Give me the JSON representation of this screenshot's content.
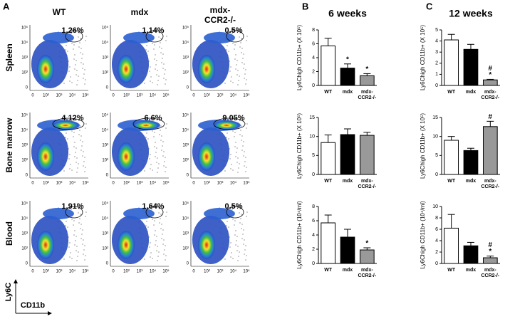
{
  "panel_letters": [
    "A",
    "B",
    "C"
  ],
  "flow": {
    "columns": [
      [
        "WT"
      ],
      [
        "mdx"
      ],
      [
        "mdx-",
        "CCR2-/-"
      ]
    ],
    "rows": [
      {
        "label": "Spleen",
        "percents": [
          "1.26%",
          "1.14%",
          "0.5%"
        ]
      },
      {
        "label": "Bone marrow",
        "percents": [
          "4.12%",
          "6.6%",
          "9.05%"
        ]
      },
      {
        "label": "Blood",
        "percents": [
          "1.91%",
          "1.64%",
          "0.5%"
        ]
      }
    ],
    "yticks": [
      "10⁵",
      "10⁴",
      "10³",
      "10²",
      "0"
    ],
    "xticks": [
      "0",
      "10²",
      "10³",
      "10⁴",
      "10⁵"
    ],
    "ylabel": "Ly6C",
    "xlabel": "CD11b"
  },
  "chart_data": [
    {
      "type": "bar",
      "title": "6 weeks",
      "ylabel": "Ly6Chigh CD11b+ (X 10⁵)",
      "categories": [
        [
          "WT"
        ],
        [
          "mdx"
        ],
        [
          "mdx-",
          "CCR2-/-"
        ]
      ],
      "colors": [
        "#ffffff",
        "#000000",
        "#999999"
      ],
      "values": [
        5.7,
        2.5,
        1.4
      ],
      "errors": [
        1.1,
        0.6,
        0.3
      ],
      "marks": [
        [],
        [
          "*"
        ],
        [
          "*"
        ]
      ],
      "ylim": [
        0,
        8
      ],
      "yticks": [
        0,
        2,
        4,
        6,
        8
      ]
    },
    {
      "type": "bar",
      "ylabel": "Ly6Chigh CD11b+ (X 10⁵)",
      "categories": [
        [
          "WT"
        ],
        [
          "mdx"
        ],
        [
          "mdx-",
          "CCR2-/-"
        ]
      ],
      "colors": [
        "#ffffff",
        "#000000",
        "#999999"
      ],
      "values": [
        8.4,
        10.5,
        10.3
      ],
      "errors": [
        2,
        1.5,
        0.8
      ],
      "marks": [
        [],
        [],
        []
      ],
      "ylim": [
        0,
        15
      ],
      "yticks": [
        0,
        5,
        10,
        15
      ]
    },
    {
      "type": "bar",
      "ylabel": "Ly6Chigh CD11b+ (10⁴/ml)",
      "categories": [
        [
          "WT"
        ],
        [
          "mdx"
        ],
        [
          "mdx-",
          "CCR2-/-"
        ]
      ],
      "colors": [
        "#ffffff",
        "#000000",
        "#999999"
      ],
      "values": [
        5.7,
        3.7,
        1.9
      ],
      "errors": [
        1.1,
        1.1,
        0.3
      ],
      "marks": [
        [],
        [],
        [
          "*"
        ]
      ],
      "ylim": [
        0,
        8
      ],
      "yticks": [
        0,
        2,
        4,
        6,
        8
      ]
    },
    {
      "type": "bar",
      "title": "12 weeks",
      "ylabel": "Ly6Chigh CD11b+ (X 10⁵)",
      "categories": [
        [
          "WT"
        ],
        [
          "mdx"
        ],
        [
          "mdx-",
          "CCR2-/-"
        ]
      ],
      "colors": [
        "#ffffff",
        "#000000",
        "#999999"
      ],
      "values": [
        4.1,
        3.25,
        0.5
      ],
      "errors": [
        0.5,
        0.45,
        0.05
      ],
      "marks": [
        [],
        [],
        [
          "#",
          "*"
        ]
      ],
      "ylim": [
        0,
        5
      ],
      "yticks": [
        0,
        1,
        2,
        3,
        4,
        5
      ]
    },
    {
      "type": "bar",
      "ylabel": "Ly6Chigh CD11b+ (X 10⁵)",
      "categories": [
        [
          "WT"
        ],
        [
          "mdx"
        ],
        [
          "mdx-",
          "CCR2-/-"
        ]
      ],
      "colors": [
        "#ffffff",
        "#000000",
        "#999999"
      ],
      "values": [
        9.0,
        6.3,
        12.6
      ],
      "errors": [
        1,
        0.6,
        1.4
      ],
      "marks": [
        [],
        [],
        [
          "#"
        ]
      ],
      "ylim": [
        0,
        15
      ],
      "yticks": [
        0,
        5,
        10,
        15
      ]
    },
    {
      "type": "bar",
      "ylabel": "Ly6Chigh CD11b+ (10⁴/ml)",
      "categories": [
        [
          "WT"
        ],
        [
          "mdx"
        ],
        [
          "mdx-",
          "CCR2-/-"
        ]
      ],
      "colors": [
        "#ffffff",
        "#000000",
        "#999999"
      ],
      "values": [
        6.2,
        3.1,
        1.0
      ],
      "errors": [
        2.4,
        0.6,
        0.3
      ],
      "marks": [
        [],
        [],
        [
          "#",
          "*"
        ]
      ],
      "ylim": [
        0,
        10
      ],
      "yticks": [
        0,
        2,
        4,
        6,
        8,
        10
      ]
    }
  ]
}
